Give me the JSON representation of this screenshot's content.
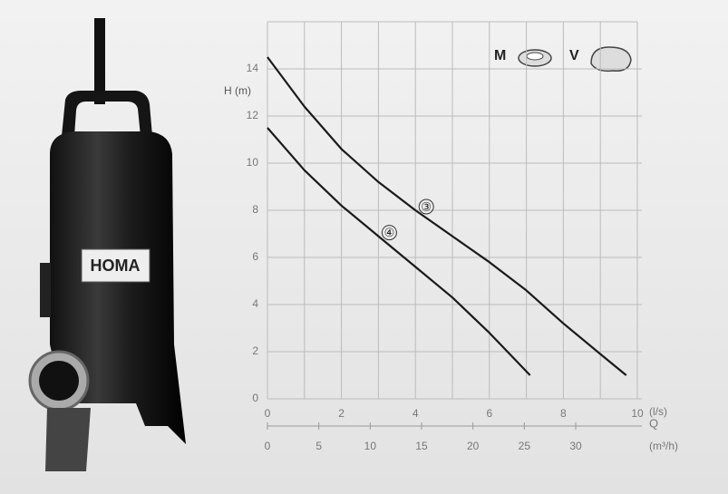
{
  "chart_data": {
    "type": "line",
    "brand": "HOMA",
    "y_label": "H (m)",
    "x_label": "(l/s)",
    "x2_name": "Q",
    "x2_label": "(m³/h)",
    "markers": [
      "M",
      "V"
    ],
    "xlim": [
      0,
      10
    ],
    "xticks": [
      0,
      2,
      4,
      6,
      8,
      10
    ],
    "x2lim": [
      0,
      36
    ],
    "x2ticks": [
      0,
      5,
      10,
      15,
      20,
      25,
      30
    ],
    "ylim": [
      0,
      16
    ],
    "yticks": [
      0,
      2,
      4,
      6,
      8,
      10,
      12,
      14
    ],
    "grid": true,
    "series": [
      {
        "name": "③",
        "color": "#1a1a1a",
        "x": [
          0,
          1,
          2,
          3,
          4,
          5,
          6,
          7,
          8,
          9,
          9.7
        ],
        "values": [
          14.5,
          12.4,
          10.6,
          9.2,
          8.0,
          6.9,
          5.8,
          4.6,
          3.2,
          1.9,
          1.0
        ]
      },
      {
        "name": "④",
        "color": "#1a1a1a",
        "x": [
          0,
          1,
          2,
          3,
          4,
          5,
          6,
          7.1
        ],
        "values": [
          11.5,
          9.7,
          8.2,
          6.9,
          5.6,
          4.3,
          2.8,
          1.0
        ]
      }
    ]
  }
}
